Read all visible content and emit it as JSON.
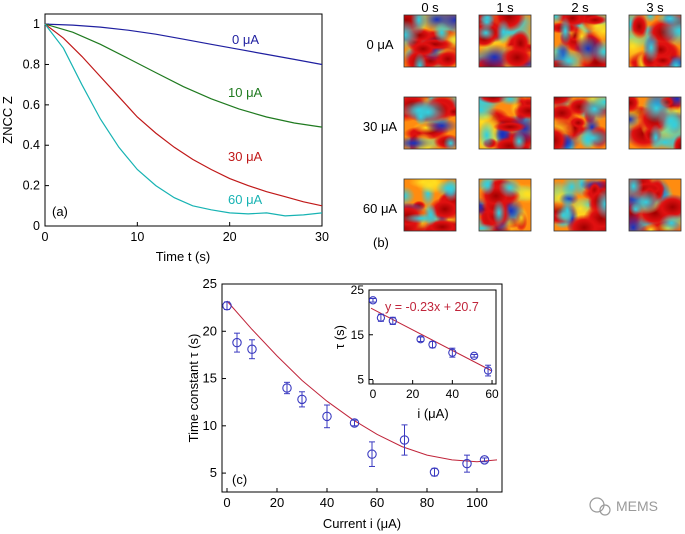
{
  "colors": {
    "blue": "#1f1fa0",
    "green": "#1f7a1f",
    "red": "#c01818",
    "cyan": "#17b3b3",
    "marker": "#3a3ac0",
    "fit": "#c0243a"
  },
  "watermark": "MEMS",
  "chart_data": [
    {
      "panel": "(a)",
      "type": "line",
      "xlabel": "Time t (s)",
      "ylabel": "ZNCC Z",
      "xlim": [
        0,
        30
      ],
      "ylim": [
        0,
        1.05
      ],
      "xticks": [
        0,
        10,
        20,
        30
      ],
      "yticks": [
        0,
        0.2,
        0.4,
        0.6,
        0.8,
        1
      ],
      "ytick_labels": [
        "0",
        "0.2",
        "0.4",
        "0.6",
        "0.8",
        "1"
      ],
      "series": [
        {
          "name": "0 μA",
          "color": "#1f1fa0",
          "x": [
            0,
            3,
            6,
            9,
            12,
            15,
            18,
            21,
            24,
            27,
            30
          ],
          "y": [
            1.0,
            0.995,
            0.985,
            0.97,
            0.95,
            0.925,
            0.9,
            0.875,
            0.85,
            0.825,
            0.8
          ]
        },
        {
          "name": "10 μA",
          "color": "#1f7a1f",
          "x": [
            0,
            3,
            6,
            9,
            12,
            15,
            18,
            21,
            24,
            27,
            30
          ],
          "y": [
            1.0,
            0.96,
            0.9,
            0.83,
            0.76,
            0.69,
            0.63,
            0.58,
            0.54,
            0.51,
            0.49
          ]
        },
        {
          "name": "30 μA",
          "color": "#c01818",
          "x": [
            0,
            2,
            4,
            6,
            8,
            10,
            12,
            14,
            16,
            18,
            20,
            22,
            24,
            26,
            28,
            30
          ],
          "y": [
            1.0,
            0.93,
            0.84,
            0.74,
            0.64,
            0.54,
            0.46,
            0.39,
            0.33,
            0.28,
            0.235,
            0.2,
            0.17,
            0.145,
            0.12,
            0.1
          ]
        },
        {
          "name": "60 μA",
          "color": "#17b3b3",
          "x": [
            0,
            2,
            4,
            6,
            8,
            10,
            12,
            14,
            16,
            18,
            20,
            22,
            24,
            26,
            28,
            30
          ],
          "y": [
            1.0,
            0.88,
            0.7,
            0.53,
            0.39,
            0.28,
            0.2,
            0.14,
            0.1,
            0.08,
            0.065,
            0.06,
            0.065,
            0.05,
            0.055,
            0.065
          ]
        }
      ]
    },
    {
      "panel": "(b)",
      "type": "heatmap",
      "columns": [
        "0 s",
        "1 s",
        "2 s",
        "3 s"
      ],
      "rows": [
        "0 μA",
        "30 μA",
        "60 μA"
      ]
    },
    {
      "panel": "(c)",
      "type": "scatter",
      "xlabel": "Current i (μA)",
      "ylabel": "Time constant τ (s)",
      "xlim": [
        -2,
        110
      ],
      "ylim": [
        3,
        25
      ],
      "xticks": [
        0,
        20,
        40,
        60,
        80,
        100
      ],
      "yticks": [
        5,
        10,
        15,
        20,
        25
      ],
      "points": {
        "x": [
          0,
          4,
          10,
          24,
          30,
          40,
          51,
          58,
          71,
          83,
          96,
          103
        ],
        "y": [
          22.7,
          18.8,
          18.1,
          14.0,
          12.8,
          11.0,
          10.3,
          7.0,
          8.5,
          5.1,
          6.0,
          6.4
        ],
        "err": [
          0.4,
          1.0,
          1.0,
          0.6,
          0.8,
          1.2,
          0.3,
          1.3,
          1.6,
          0.4,
          0.9,
          0.2
        ]
      },
      "fit": {
        "x": [
          0,
          10,
          20,
          30,
          40,
          50,
          60,
          70,
          80,
          90,
          100,
          108
        ],
        "y": [
          23.2,
          20.2,
          17.4,
          14.8,
          12.6,
          10.7,
          9.1,
          7.8,
          6.9,
          6.4,
          6.2,
          6.4
        ]
      },
      "inset": {
        "xlabel": "i (μA)",
        "ylabel": "τ (s)",
        "xlim": [
          -2,
          62
        ],
        "ylim": [
          4,
          25
        ],
        "xticks": [
          0,
          20,
          40,
          60
        ],
        "yticks": [
          5,
          15,
          25
        ],
        "annotation": "y = -0.23x + 20.7",
        "points": {
          "x": [
            0,
            4,
            10,
            24,
            30,
            40,
            51,
            58
          ],
          "y": [
            22.7,
            18.8,
            18.1,
            14.0,
            12.8,
            11.0,
            10.3,
            7.0
          ],
          "err": [
            0.4,
            0.8,
            0.8,
            0.5,
            0.7,
            1.0,
            0.3,
            1.2
          ]
        },
        "fit": {
          "x": [
            -1,
            60
          ],
          "y": [
            20.93,
            6.9
          ]
        }
      }
    }
  ]
}
